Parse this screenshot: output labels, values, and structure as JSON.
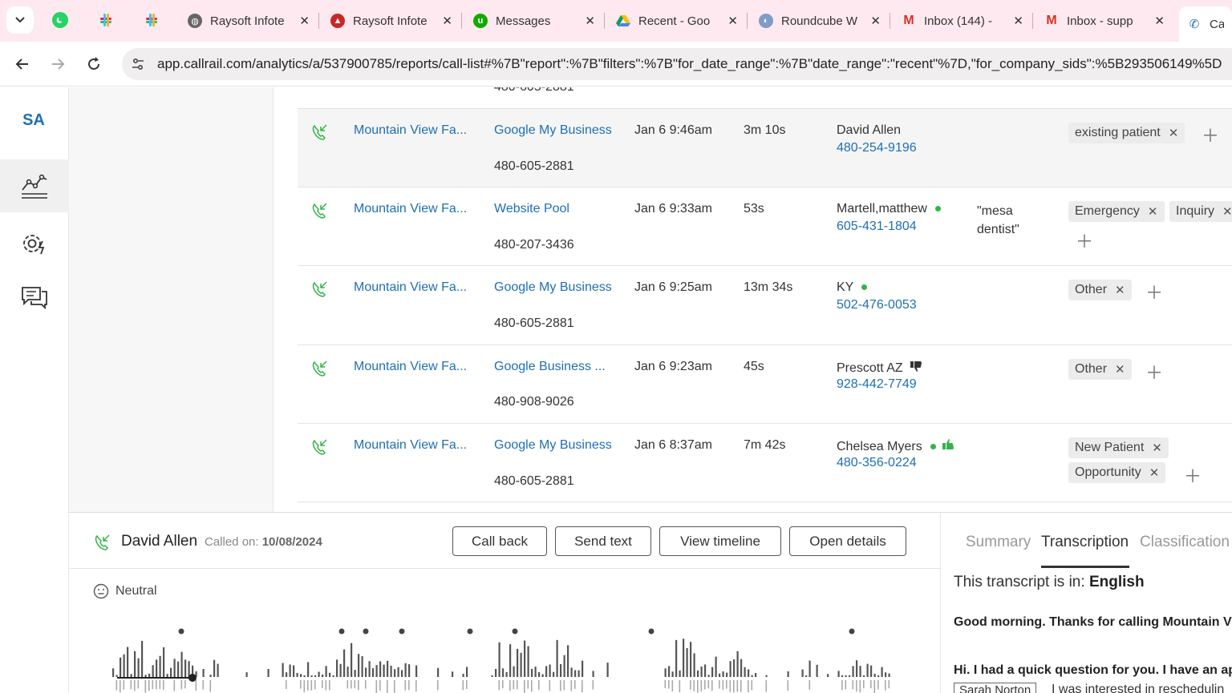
{
  "browser": {
    "tabs": [
      {
        "title": "Raysoft Infote",
        "favicon": "globe-icon",
        "color": "#555555"
      },
      {
        "title": "Raysoft Infote",
        "favicon": "school-icon",
        "color": "#c62828"
      },
      {
        "title": "Messages",
        "favicon": "upwork-icon",
        "color": "#14a800"
      },
      {
        "title": "Recent - Goo",
        "favicon": "drive-icon",
        "color": "#1e88e5"
      },
      {
        "title": "Roundcube W",
        "favicon": "roundcube-icon",
        "color": "#5c7fb0"
      },
      {
        "title": "Inbox (144) -",
        "favicon": "gmail-icon",
        "color": "#d93025"
      },
      {
        "title": "Inbox - supp",
        "favicon": "gmail-icon",
        "color": "#d93025"
      },
      {
        "title": "Call",
        "favicon": "phone-icon",
        "color": "#1f6fb3"
      }
    ],
    "url": "app.callrail.com/analytics/a/537900785/reports/call-list#%7B\"report\":%7B\"filters\":%7B\"for_date_range\":%7B\"date_range\":\"recent\"%7D,\"for_company_sids\":%5B293506149%5D"
  },
  "rail": {
    "avatar": "SA"
  },
  "calls": {
    "partial_top_number": "480-605-2881",
    "rows": [
      {
        "company": "Mountain View Fa...",
        "source": "Google My Business",
        "tracking": "480-605-2881",
        "datetime": "Jan 6 9:46am",
        "duration": "3m 10s",
        "caller": "David Allen",
        "phone": "480-254-9196",
        "keyword": "",
        "tags": [
          "existing patient"
        ]
      },
      {
        "company": "Mountain View Fa...",
        "source": "Website Pool",
        "tracking": "480-207-3436",
        "datetime": "Jan 6 9:33am",
        "duration": "53s",
        "caller": "Martell,matthew",
        "phone": "605-431-1804",
        "keyword": "\"mesa dentist\"",
        "tags": [
          "Emergency",
          "Inquiry"
        ]
      },
      {
        "company": "Mountain View Fa...",
        "source": "Google My Business",
        "tracking": "480-605-2881",
        "datetime": "Jan 6 9:25am",
        "duration": "13m 34s",
        "caller": "KY",
        "phone": "502-476-0053",
        "keyword": "",
        "tags": [
          "Other"
        ]
      },
      {
        "company": "Mountain View Fa...",
        "source": "Google Business ...",
        "tracking": "480-908-9026",
        "datetime": "Jan 6 9:23am",
        "duration": "45s",
        "caller": "Prescott AZ",
        "phone": "928-442-7749",
        "keyword": "",
        "tags": [
          "Other"
        ]
      },
      {
        "company": "Mountain View Fa...",
        "source": "Google My Business",
        "tracking": "480-605-2881",
        "datetime": "Jan 6 8:37am",
        "duration": "7m 42s",
        "caller": "Chelsea Myers",
        "phone": "480-356-0224",
        "keyword": "",
        "tags": [
          "New Patient",
          "Opportunity"
        ]
      }
    ]
  },
  "detail": {
    "name": "David Allen",
    "called_label": "Called on:",
    "called_date": "10/08/2024",
    "buttons": {
      "call_back": "Call back",
      "send_text": "Send text",
      "view_timeline": "View timeline",
      "open_details": "Open details"
    },
    "sentiment": "Neutral",
    "tabs": {
      "summary": "Summary",
      "transcription": "Transcription",
      "classification": "Classification"
    },
    "lang_label": "This transcript is in:",
    "lang_value": "English",
    "line1": "Good morning. Thanks for calling Mountain Vie",
    "line2": "Hi. I had a quick question for you. I have an app",
    "speaker": "Sarah Norton",
    "line3": "I was interested in reschedulin"
  },
  "colors": {
    "link": "#1f6fb3",
    "accent_green": "#35b34a",
    "tabbar": "#fde9ef"
  }
}
